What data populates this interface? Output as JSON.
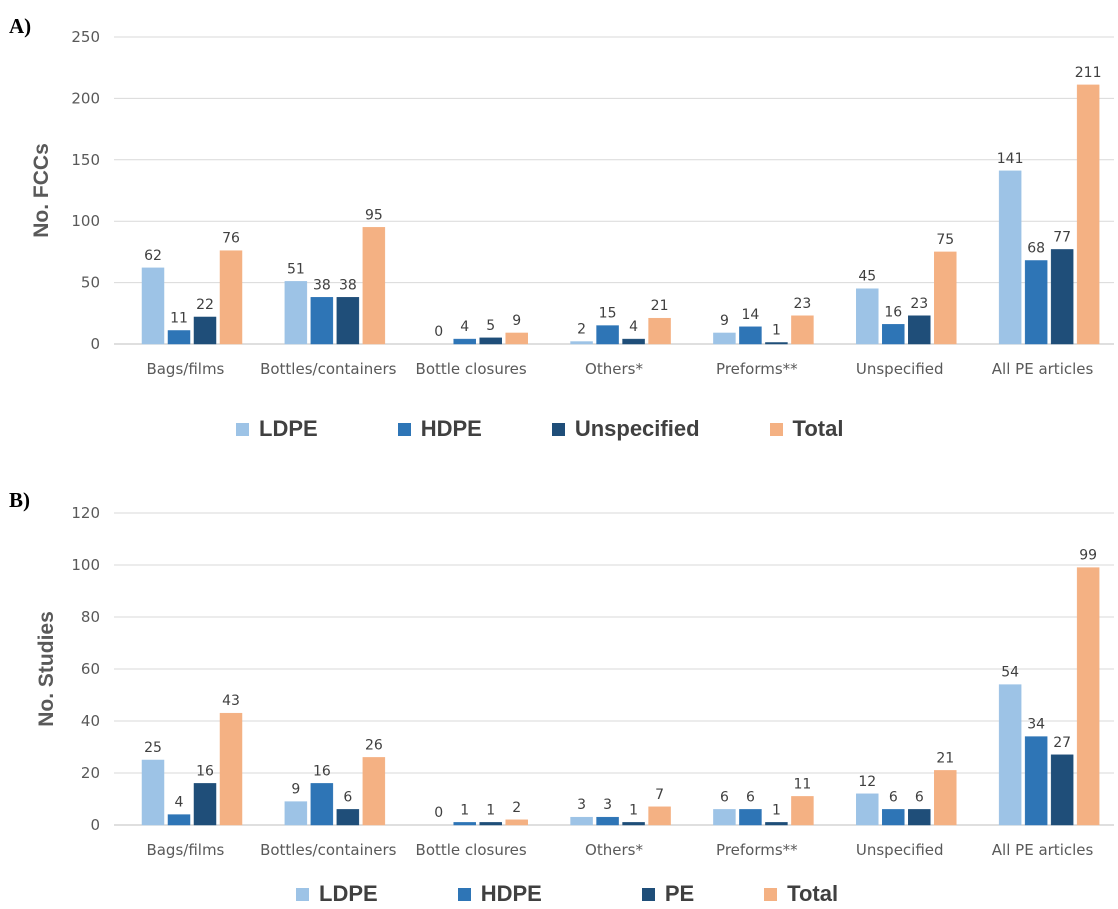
{
  "panels": [
    {
      "letter": "A)"
    },
    {
      "letter": "B)"
    }
  ],
  "colors": {
    "LDPE": "#9DC3E6",
    "HDPE": "#2E75B6",
    "dark": "#1F4E79",
    "Total": "#F4B183",
    "axis": "#BFBFBF",
    "grid": "#D9D9D9"
  },
  "chart_data": [
    {
      "type": "bar",
      "ylabel": "No. FCCs",
      "ylim": [
        0,
        250
      ],
      "yticks": [
        0,
        50,
        100,
        150,
        200,
        250
      ],
      "categories": [
        "Bags/films",
        "Bottles/containers",
        "Bottle closures",
        "Others*",
        "Preforms**",
        "Unspecified",
        "All PE articles"
      ],
      "series": [
        {
          "name": "LDPE",
          "values": [
            62,
            51,
            0,
            2,
            9,
            45,
            141
          ]
        },
        {
          "name": "HDPE",
          "values": [
            11,
            38,
            4,
            15,
            14,
            16,
            68
          ]
        },
        {
          "name": "Unspecified",
          "values": [
            22,
            38,
            5,
            4,
            1,
            23,
            77
          ]
        },
        {
          "name": "Total",
          "values": [
            76,
            95,
            9,
            21,
            23,
            75,
            211
          ]
        }
      ],
      "data_labels": [
        [
          "62",
          "11",
          "22",
          "76"
        ],
        [
          "51",
          "38",
          "38",
          "95"
        ],
        [
          "0",
          "4",
          "5",
          "9"
        ],
        [
          "2",
          "15",
          "4",
          "21"
        ],
        [
          "9",
          "14",
          "1",
          "23"
        ],
        [
          "45",
          "16",
          "23",
          "75"
        ],
        [
          "141",
          "68",
          "77",
          "211"
        ]
      ],
      "grid": true,
      "legend": "bottom"
    },
    {
      "type": "bar",
      "ylabel": "No. Studies",
      "ylim": [
        0,
        120
      ],
      "yticks": [
        0,
        20,
        40,
        60,
        80,
        100,
        120
      ],
      "categories": [
        "Bags/films",
        "Bottles/containers",
        "Bottle closures",
        "Others*",
        "Preforms**",
        "Unspecified",
        "All PE articles"
      ],
      "series": [
        {
          "name": "LDPE",
          "values": [
            25,
            9,
            0,
            3,
            6,
            12,
            54
          ]
        },
        {
          "name": "HDPE",
          "values": [
            4,
            16,
            1,
            3,
            6,
            6,
            34
          ]
        },
        {
          "name": "PE",
          "values": [
            16,
            6,
            1,
            1,
            1,
            6,
            27
          ]
        },
        {
          "name": "Total",
          "values": [
            43,
            26,
            2,
            7,
            11,
            21,
            99
          ]
        }
      ],
      "data_labels": [
        [
          "25",
          "4",
          "16",
          "43"
        ],
        [
          "9",
          "16",
          "6",
          "26"
        ],
        [
          "0",
          "1",
          "1",
          "2"
        ],
        [
          "3",
          "3",
          "1",
          "7"
        ],
        [
          "6",
          "6",
          "1",
          "11"
        ],
        [
          "12",
          "6",
          "6",
          "21"
        ],
        [
          "54",
          "34",
          "27",
          "99"
        ]
      ],
      "grid": true,
      "legend": "bottom"
    }
  ]
}
